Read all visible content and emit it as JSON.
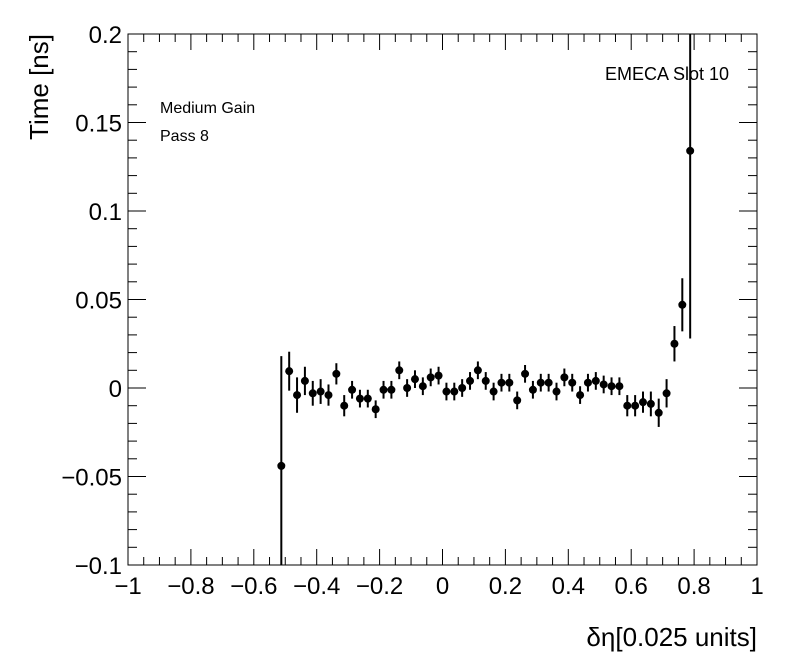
{
  "chart_data": {
    "type": "scatter",
    "title": "",
    "xlabel": "δη[0.025 units]",
    "ylabel": "Time [ns]",
    "xlim": [
      -1,
      1
    ],
    "ylim": [
      -0.1,
      0.2
    ],
    "x_ticks": [
      -1,
      -0.8,
      -0.6,
      -0.4,
      -0.2,
      0,
      0.2,
      0.4,
      0.6,
      0.8,
      1
    ],
    "x_tick_labels": [
      "−1",
      "−0.8",
      "−0.6",
      "−0.4",
      "−0.2",
      "0",
      "0.2",
      "0.4",
      "0.6",
      "0.8",
      "1"
    ],
    "y_ticks": [
      -0.1,
      -0.05,
      0,
      0.05,
      0.1,
      0.15,
      0.2
    ],
    "y_tick_labels": [
      "−0.1",
      "−0.05",
      "0",
      "0.05",
      "0.1",
      "0.15",
      "0.2"
    ],
    "annotations": {
      "left_line1": "Medium Gain",
      "left_line2": "Pass 8",
      "right": "EMECA Slot 10"
    },
    "color": "#000000",
    "points": [
      {
        "x": -0.5125,
        "y": -0.044,
        "err": 0.062
      },
      {
        "x": -0.4875,
        "y": 0.0095,
        "err": 0.011
      },
      {
        "x": -0.4625,
        "y": -0.004,
        "err": 0.01
      },
      {
        "x": -0.4375,
        "y": 0.004,
        "err": 0.008
      },
      {
        "x": -0.4125,
        "y": -0.003,
        "err": 0.007
      },
      {
        "x": -0.3875,
        "y": -0.002,
        "err": 0.007
      },
      {
        "x": -0.3625,
        "y": -0.004,
        "err": 0.006
      },
      {
        "x": -0.3375,
        "y": 0.008,
        "err": 0.006
      },
      {
        "x": -0.3125,
        "y": -0.01,
        "err": 0.006
      },
      {
        "x": -0.2875,
        "y": -0.001,
        "err": 0.005
      },
      {
        "x": -0.2625,
        "y": -0.006,
        "err": 0.005
      },
      {
        "x": -0.2375,
        "y": -0.006,
        "err": 0.005
      },
      {
        "x": -0.2125,
        "y": -0.012,
        "err": 0.005
      },
      {
        "x": -0.1875,
        "y": -0.001,
        "err": 0.005
      },
      {
        "x": -0.1625,
        "y": -0.001,
        "err": 0.005
      },
      {
        "x": -0.1375,
        "y": 0.01,
        "err": 0.005
      },
      {
        "x": -0.1125,
        "y": 0.0,
        "err": 0.005
      },
      {
        "x": -0.0875,
        "y": 0.005,
        "err": 0.005
      },
      {
        "x": -0.0625,
        "y": 0.001,
        "err": 0.005
      },
      {
        "x": -0.0375,
        "y": 0.006,
        "err": 0.005
      },
      {
        "x": -0.0125,
        "y": 0.007,
        "err": 0.005
      },
      {
        "x": 0.0125,
        "y": -0.002,
        "err": 0.005
      },
      {
        "x": 0.0375,
        "y": -0.002,
        "err": 0.005
      },
      {
        "x": 0.0625,
        "y": 0.0,
        "err": 0.005
      },
      {
        "x": 0.0875,
        "y": 0.004,
        "err": 0.005
      },
      {
        "x": 0.1125,
        "y": 0.01,
        "err": 0.005
      },
      {
        "x": 0.1375,
        "y": 0.004,
        "err": 0.005
      },
      {
        "x": 0.1625,
        "y": -0.002,
        "err": 0.005
      },
      {
        "x": 0.1875,
        "y": 0.003,
        "err": 0.005
      },
      {
        "x": 0.2125,
        "y": 0.003,
        "err": 0.005
      },
      {
        "x": 0.2375,
        "y": -0.007,
        "err": 0.005
      },
      {
        "x": 0.2625,
        "y": 0.008,
        "err": 0.005
      },
      {
        "x": 0.2875,
        "y": -0.001,
        "err": 0.005
      },
      {
        "x": 0.3125,
        "y": 0.003,
        "err": 0.005
      },
      {
        "x": 0.3375,
        "y": 0.003,
        "err": 0.005
      },
      {
        "x": 0.3625,
        "y": -0.002,
        "err": 0.005
      },
      {
        "x": 0.3875,
        "y": 0.006,
        "err": 0.005
      },
      {
        "x": 0.4125,
        "y": 0.003,
        "err": 0.005
      },
      {
        "x": 0.4375,
        "y": -0.004,
        "err": 0.005
      },
      {
        "x": 0.4625,
        "y": 0.003,
        "err": 0.005
      },
      {
        "x": 0.4875,
        "y": 0.004,
        "err": 0.005
      },
      {
        "x": 0.5125,
        "y": 0.002,
        "err": 0.005
      },
      {
        "x": 0.5375,
        "y": 0.001,
        "err": 0.005
      },
      {
        "x": 0.5625,
        "y": 0.001,
        "err": 0.005
      },
      {
        "x": 0.5875,
        "y": -0.01,
        "err": 0.006
      },
      {
        "x": 0.6125,
        "y": -0.01,
        "err": 0.006
      },
      {
        "x": 0.6375,
        "y": -0.008,
        "err": 0.006
      },
      {
        "x": 0.6625,
        "y": -0.009,
        "err": 0.007
      },
      {
        "x": 0.6875,
        "y": -0.014,
        "err": 0.008
      },
      {
        "x": 0.7125,
        "y": -0.003,
        "err": 0.008
      },
      {
        "x": 0.7375,
        "y": 0.025,
        "err": 0.01
      },
      {
        "x": 0.7625,
        "y": 0.047,
        "err": 0.015
      },
      {
        "x": 0.7875,
        "y": 0.134,
        "err": 0.106
      }
    ]
  }
}
